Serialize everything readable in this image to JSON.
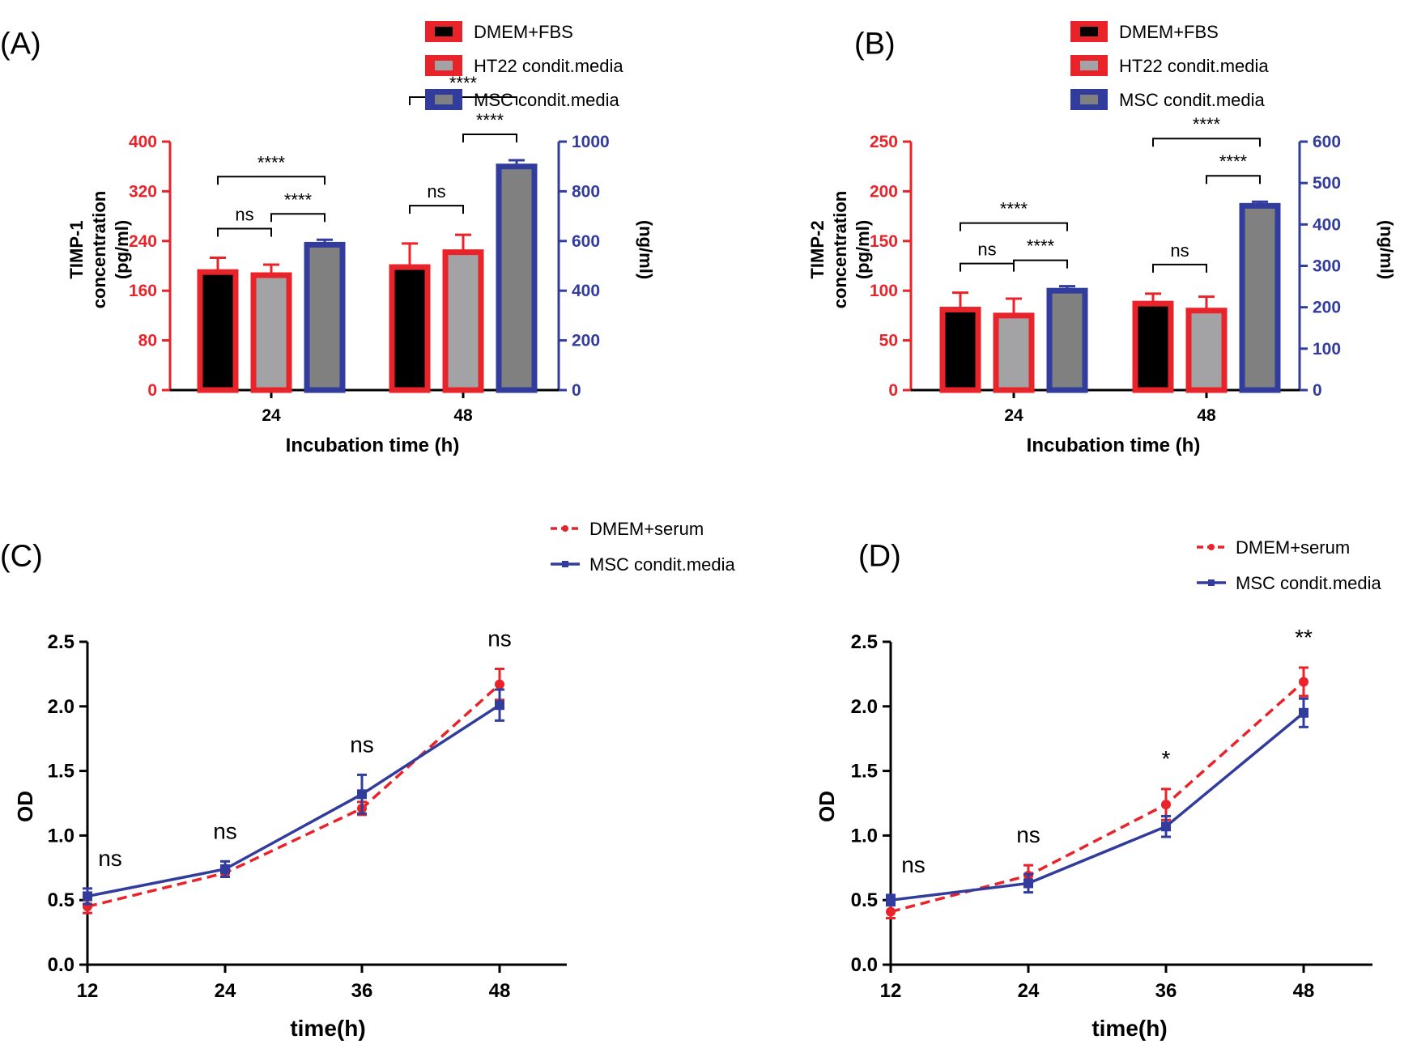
{
  "colors": {
    "red": "#e8232a",
    "blue": "#323c9c",
    "black": "#000000",
    "light_gray": "#a3a3a6",
    "dark_gray": "#808080"
  },
  "chart_data": [
    {
      "id": "A",
      "panel_label": "(A)",
      "type": "bar",
      "categories": [
        "24",
        "48"
      ],
      "xlabel": "Incubation time (h)",
      "ylabel_lines": [
        "TIMP-1",
        "concentration",
        "(pg/ml)"
      ],
      "y2label": "(ng/ml)",
      "ylim": [
        0,
        400
      ],
      "yticks": [
        0,
        80,
        160,
        240,
        320,
        400
      ],
      "y2lim": [
        0,
        1000
      ],
      "y2ticks": [
        0,
        200,
        400,
        600,
        800,
        1000
      ],
      "legend": [
        "DMEM+FBS",
        "HT22 condit.media",
        "MSC condit.media"
      ],
      "series": [
        {
          "name": "DMEM+FBS",
          "axis": "left",
          "values": [
            190,
            198
          ],
          "errors": [
            23,
            38
          ]
        },
        {
          "name": "HT22 condit.media",
          "axis": "left",
          "values": [
            185,
            222
          ],
          "errors": [
            17,
            28
          ]
        },
        {
          "name": "MSC condit.media",
          "axis": "right",
          "values": [
            585,
            900
          ],
          "errors": [
            20,
            25
          ]
        }
      ],
      "annotations": [
        {
          "group": 0,
          "from": 0,
          "to": 1,
          "level": 0,
          "text": "ns"
        },
        {
          "group": 0,
          "from": 1,
          "to": 2,
          "level": 1,
          "text": "****"
        },
        {
          "group": 0,
          "from": 0,
          "to": 2,
          "level": 2,
          "text": "****"
        },
        {
          "group": 1,
          "from": 0,
          "to": 1,
          "level": 0,
          "text": "ns"
        },
        {
          "group": 1,
          "from": 1,
          "to": 2,
          "level": 1,
          "text": "****"
        },
        {
          "group": 1,
          "from": 0,
          "to": 2,
          "level": 2,
          "text": "****"
        }
      ]
    },
    {
      "id": "B",
      "panel_label": "(B)",
      "type": "bar",
      "categories": [
        "24",
        "48"
      ],
      "xlabel": "Incubation time (h)",
      "ylabel_lines": [
        "TIMP-2",
        "concentration",
        "(pg/ml)"
      ],
      "y2label": "(ng/ml)",
      "ylim": [
        0,
        250
      ],
      "yticks": [
        0,
        50,
        100,
        150,
        200,
        250
      ],
      "y2lim": [
        0,
        600
      ],
      "y2ticks": [
        0,
        100,
        200,
        300,
        400,
        500,
        600
      ],
      "legend": [
        "DMEM+FBS",
        "HT22 condit.media",
        "MSC condit.media"
      ],
      "series": [
        {
          "name": "DMEM+FBS",
          "axis": "left",
          "values": [
            81,
            87
          ],
          "errors": [
            17,
            10
          ]
        },
        {
          "name": "HT22 condit.media",
          "axis": "left",
          "values": [
            75,
            80
          ],
          "errors": [
            17,
            14
          ]
        },
        {
          "name": "MSC condit.media",
          "axis": "right",
          "values": [
            240,
            445
          ],
          "errors": [
            11,
            10
          ]
        }
      ],
      "annotations": [
        {
          "group": 0,
          "from": 0,
          "to": 1,
          "level": 0,
          "text": "ns"
        },
        {
          "group": 0,
          "from": 1,
          "to": 2,
          "level": 1,
          "text": "****"
        },
        {
          "group": 0,
          "from": 0,
          "to": 2,
          "level": 2,
          "text": "****"
        },
        {
          "group": 1,
          "from": 0,
          "to": 1,
          "level": 0,
          "text": "ns"
        },
        {
          "group": 1,
          "from": 1,
          "to": 2,
          "level": 1,
          "text": "****"
        },
        {
          "group": 1,
          "from": 0,
          "to": 2,
          "level": 2,
          "text": "****"
        }
      ]
    },
    {
      "id": "C",
      "panel_label": "(C)",
      "type": "line",
      "x": [
        12,
        24,
        36,
        48
      ],
      "xlabel": "time(h)",
      "ylabel": "OD",
      "ylim": [
        0,
        2.5
      ],
      "yticks": [
        "0.0",
        "0.5",
        "1.0",
        "1.5",
        "2.0",
        "2.5"
      ],
      "legend": [
        "DMEM+serum",
        "MSC condit.media"
      ],
      "series": [
        {
          "name": "DMEM+serum",
          "style": "dashed",
          "marker": "circle",
          "values": [
            0.45,
            0.71,
            1.21,
            2.17
          ],
          "errors": [
            0.05,
            0.03,
            0.05,
            0.12
          ]
        },
        {
          "name": "MSC condit.media",
          "style": "solid",
          "marker": "square",
          "values": [
            0.53,
            0.74,
            1.32,
            2.01
          ],
          "errors": [
            0.06,
            0.06,
            0.15,
            0.12
          ]
        }
      ],
      "annotations": [
        "ns",
        "ns",
        "ns",
        "ns"
      ]
    },
    {
      "id": "D",
      "panel_label": "(D)",
      "type": "line",
      "x": [
        12,
        24,
        36,
        48
      ],
      "xlabel": "time(h)",
      "ylabel": "OD",
      "ylim": [
        0,
        2.5
      ],
      "yticks": [
        "0.0",
        "0.5",
        "1.0",
        "1.5",
        "2.0",
        "2.5"
      ],
      "legend": [
        "DMEM+serum",
        "MSC condit.media"
      ],
      "series": [
        {
          "name": "DMEM+serum",
          "style": "dashed",
          "marker": "circle",
          "values": [
            0.41,
            0.69,
            1.24,
            2.19
          ],
          "errors": [
            0.05,
            0.08,
            0.12,
            0.11
          ]
        },
        {
          "name": "MSC condit.media",
          "style": "solid",
          "marker": "square",
          "values": [
            0.5,
            0.63,
            1.07,
            1.95
          ],
          "errors": [
            0.04,
            0.07,
            0.08,
            0.11
          ]
        }
      ],
      "annotations": [
        "ns",
        "ns",
        "*",
        "**"
      ]
    }
  ]
}
